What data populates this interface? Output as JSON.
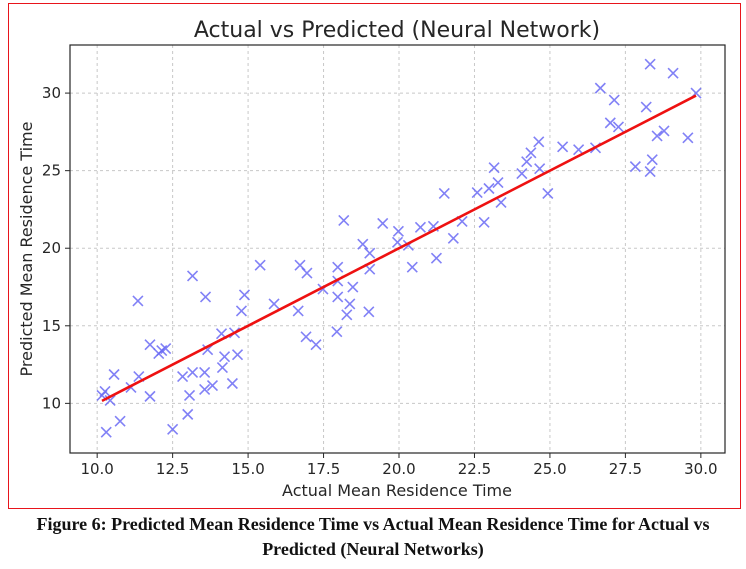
{
  "caption": "Figure 6: Predicted Mean Residence Time vs Actual Mean Residence Time for Actual vs Predicted (Neural Networks)",
  "colors": {
    "points": "#6b6bf5",
    "line": "#ee1111",
    "border": "#e8141b"
  },
  "chart_data": {
    "type": "scatter",
    "title": "Actual vs Predicted (Neural Network)",
    "xlabel": "Actual Mean Residence Time",
    "ylabel": "Predicted Mean Residence Time",
    "xlim": [
      9.1,
      30.8
    ],
    "ylim": [
      6.8,
      33.1
    ],
    "xticks": [
      "10.0",
      "12.5",
      "15.0",
      "17.5",
      "20.0",
      "22.5",
      "25.0",
      "27.5",
      "30.0"
    ],
    "xtick_values": [
      10,
      12.5,
      15,
      17.5,
      20,
      22.5,
      25,
      27.5,
      30
    ],
    "yticks": [
      "10",
      "15",
      "20",
      "25",
      "30"
    ],
    "ytick_values": [
      10,
      15,
      20,
      25,
      30
    ],
    "grid": true,
    "marker": "x",
    "reference_line": {
      "name": "y = x",
      "x": [
        10.16,
        29.84
      ],
      "y": [
        10.16,
        29.84
      ]
    },
    "points": [
      [
        10.16,
        10.51
      ],
      [
        10.26,
        10.77
      ],
      [
        10.43,
        10.19
      ],
      [
        10.3,
        8.14
      ],
      [
        10.76,
        8.85
      ],
      [
        10.56,
        11.86
      ],
      [
        11.12,
        11.03
      ],
      [
        11.38,
        11.73
      ],
      [
        11.35,
        16.6
      ],
      [
        11.75,
        13.78
      ],
      [
        11.75,
        10.45
      ],
      [
        12.04,
        13.21
      ],
      [
        12.14,
        13.4
      ],
      [
        12.27,
        13.53
      ],
      [
        12.5,
        8.33
      ],
      [
        12.83,
        11.73
      ],
      [
        13.0,
        9.29
      ],
      [
        13.06,
        10.51
      ],
      [
        13.16,
        11.99
      ],
      [
        13.16,
        18.21
      ],
      [
        13.56,
        11.99
      ],
      [
        13.56,
        10.9
      ],
      [
        13.59,
        16.86
      ],
      [
        13.66,
        13.46
      ],
      [
        13.82,
        11.15
      ],
      [
        14.12,
        14.49
      ],
      [
        14.15,
        12.31
      ],
      [
        14.22,
        13.01
      ],
      [
        14.48,
        11.28
      ],
      [
        14.55,
        14.55
      ],
      [
        14.65,
        13.14
      ],
      [
        14.78,
        15.96
      ],
      [
        14.88,
        16.99
      ],
      [
        15.4,
        18.91
      ],
      [
        15.86,
        16.41
      ],
      [
        16.66,
        15.96
      ],
      [
        16.72,
        18.91
      ],
      [
        16.92,
        14.29
      ],
      [
        16.95,
        18.4
      ],
      [
        17.25,
        13.78
      ],
      [
        17.48,
        17.37
      ],
      [
        17.94,
        14.62
      ],
      [
        17.97,
        18.78
      ],
      [
        17.97,
        17.88
      ],
      [
        17.97,
        16.86
      ],
      [
        18.27,
        15.71
      ],
      [
        18.37,
        16.41
      ],
      [
        18.47,
        17.5
      ],
      [
        19.0,
        15.9
      ],
      [
        19.03,
        18.65
      ],
      [
        19.03,
        19.68
      ],
      [
        18.17,
        21.79
      ],
      [
        18.8,
        20.26
      ],
      [
        19.46,
        21.6
      ],
      [
        19.98,
        21.09
      ],
      [
        19.95,
        20.38
      ],
      [
        20.31,
        20.19
      ],
      [
        20.44,
        18.78
      ],
      [
        20.71,
        21.35
      ],
      [
        21.14,
        21.41
      ],
      [
        21.24,
        19.36
      ],
      [
        21.5,
        23.53
      ],
      [
        21.8,
        20.64
      ],
      [
        22.09,
        21.73
      ],
      [
        22.59,
        23.59
      ],
      [
        22.82,
        21.67
      ],
      [
        22.98,
        23.85
      ],
      [
        23.15,
        25.19
      ],
      [
        23.28,
        24.23
      ],
      [
        23.38,
        22.95
      ],
      [
        24.07,
        24.81
      ],
      [
        24.23,
        25.58
      ],
      [
        24.37,
        26.15
      ],
      [
        24.63,
        26.86
      ],
      [
        24.66,
        25.13
      ],
      [
        24.93,
        23.53
      ],
      [
        25.42,
        26.54
      ],
      [
        25.95,
        26.35
      ],
      [
        26.51,
        26.47
      ],
      [
        26.67,
        30.32
      ],
      [
        27.0,
        28.08
      ],
      [
        27.13,
        29.55
      ],
      [
        27.27,
        27.82
      ],
      [
        27.83,
        25.26
      ],
      [
        28.19,
        29.1
      ],
      [
        28.32,
        31.86
      ],
      [
        28.32,
        24.94
      ],
      [
        28.39,
        25.71
      ],
      [
        28.55,
        27.24
      ],
      [
        28.78,
        27.56
      ],
      [
        29.08,
        31.28
      ],
      [
        29.57,
        27.12
      ],
      [
        29.84,
        30.0
      ]
    ]
  }
}
